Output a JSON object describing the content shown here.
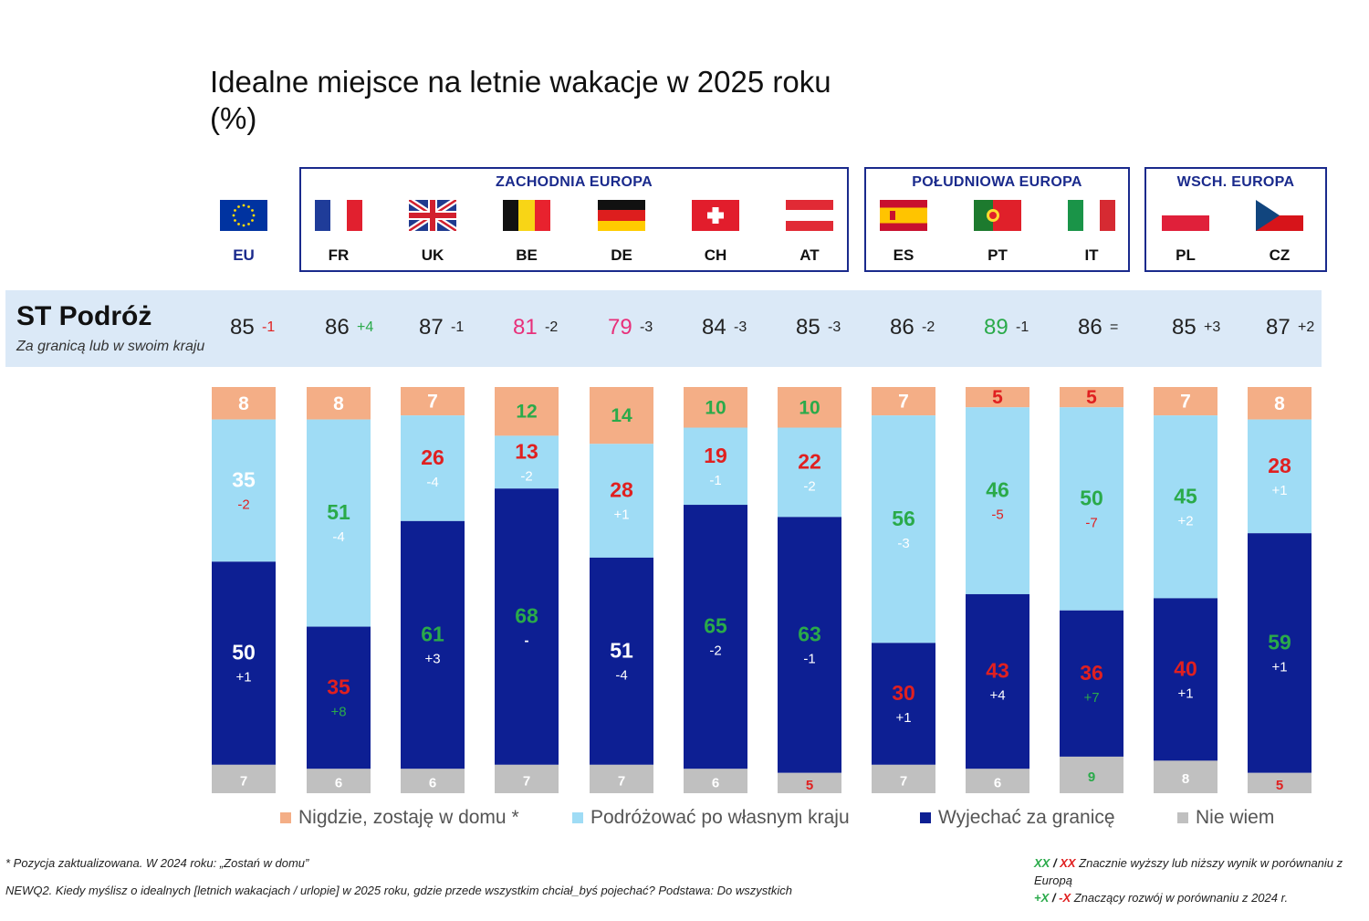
{
  "title_lines": [
    "Idealne miejsce na letnie wakacje w 2025 roku",
    "(%)"
  ],
  "regions": [
    {
      "name": "ZACHODNIA EUROPA"
    },
    {
      "name": "POŁUDNIOWA EUROPA"
    },
    {
      "name": "WSCH. EUROPA"
    }
  ],
  "countries": [
    "EU",
    "FR",
    "UK",
    "BE",
    "DE",
    "CH",
    "AT",
    "ES",
    "PT",
    "IT",
    "PL",
    "CZ"
  ],
  "flag_icons": [
    "eu-flag-icon",
    "france-flag-icon",
    "uk-flag-icon",
    "belgium-flag-icon",
    "germany-flag-icon",
    "switzerland-flag-icon",
    "austria-flag-icon",
    "spain-flag-icon",
    "portugal-flag-icon",
    "italy-flag-icon",
    "poland-flag-icon",
    "czechia-flag-icon"
  ],
  "st_row": {
    "title": "ST Podróż",
    "subtitle": "Za granicą lub w swoim kraju",
    "values": [
      "85",
      "86",
      "87",
      "81",
      "79",
      "84",
      "85",
      "86",
      "89",
      "86",
      "85",
      "87"
    ],
    "value_colors": [
      "#222222",
      "#222222",
      "#222222",
      "#e8307a",
      "#e8307a",
      "#222222",
      "#222222",
      "#222222",
      "#2aaa4a",
      "#222222",
      "#222222",
      "#222222"
    ],
    "deltas": [
      "-1",
      "+4",
      "-1",
      "-2",
      "-3",
      "-3",
      "-3",
      "-2",
      "-1",
      "=",
      "+3",
      "+2"
    ],
    "delta_colors": [
      "#e02020",
      "#2aaa4a",
      "#222222",
      "#222222",
      "#222222",
      "#222222",
      "#222222",
      "#222222",
      "#222222",
      "#222222",
      "#222222",
      "#222222"
    ]
  },
  "colors": {
    "nowhere": "#f4ae86",
    "domestic": "#9fdcf5",
    "abroad": "#0d1f93",
    "dontknow": "#c0c0c0",
    "green": "#2aaa4a",
    "red": "#e02020",
    "band": "#dbe9f7",
    "region_border": "#1a2a8c"
  },
  "chart_data": {
    "type": "bar",
    "stacked": true,
    "normalized": true,
    "categories": [
      "EU",
      "FR",
      "UK",
      "BE",
      "DE",
      "CH",
      "AT",
      "ES",
      "PT",
      "IT",
      "PL",
      "CZ"
    ],
    "series": [
      {
        "name": "Nigdzie, zostaję w domu *",
        "values": [
          8,
          8,
          7,
          12,
          14,
          10,
          10,
          7,
          5,
          5,
          7,
          8
        ],
        "label_colors": [
          "#ffffff",
          "#ffffff",
          "#ffffff",
          "#2aaa4a",
          "#2aaa4a",
          "#2aaa4a",
          "#2aaa4a",
          "#ffffff",
          "#e02020",
          "#e02020",
          "#ffffff",
          "#ffffff"
        ],
        "changes": [
          "",
          "",
          "",
          "",
          "",
          "",
          "",
          "",
          "",
          "",
          "",
          ""
        ],
        "change_colors": [
          "",
          "",
          "",
          "",
          "",
          "",
          "",
          "",
          "",
          "",
          "",
          ""
        ]
      },
      {
        "name": "Podróżować po własnym kraju",
        "values": [
          35,
          51,
          26,
          13,
          28,
          19,
          22,
          56,
          46,
          50,
          45,
          28
        ],
        "label_colors": [
          "#ffffff",
          "#2aaa4a",
          "#e02020",
          "#e02020",
          "#e02020",
          "#e02020",
          "#e02020",
          "#2aaa4a",
          "#2aaa4a",
          "#2aaa4a",
          "#2aaa4a",
          "#e02020"
        ],
        "changes": [
          "-2",
          "-4",
          "-4",
          "-2",
          "+1",
          "-1",
          "-2",
          "-3",
          "-5",
          "-7",
          "+2",
          "+1"
        ],
        "change_colors": [
          "#e02020",
          "#ffffff",
          "#ffffff",
          "#ffffff",
          "#ffffff",
          "#ffffff",
          "#ffffff",
          "#ffffff",
          "#e02020",
          "#e02020",
          "#ffffff",
          "#ffffff"
        ]
      },
      {
        "name": "Wyjechać za granicę",
        "values": [
          50,
          35,
          61,
          68,
          51,
          65,
          63,
          30,
          43,
          36,
          40,
          59
        ],
        "label_colors": [
          "#ffffff",
          "#e02020",
          "#2aaa4a",
          "#2aaa4a",
          "#ffffff",
          "#2aaa4a",
          "#2aaa4a",
          "#e02020",
          "#e02020",
          "#e02020",
          "#e02020",
          "#2aaa4a"
        ],
        "changes": [
          "+1",
          "+8",
          "+3",
          "-",
          "-4",
          "-2",
          "-1",
          "+1",
          "+4",
          "+7",
          "+1",
          "+1"
        ],
        "change_colors": [
          "#ffffff",
          "#2aaa4a",
          "#ffffff",
          "#ffffff",
          "#ffffff",
          "#ffffff",
          "#ffffff",
          "#ffffff",
          "#ffffff",
          "#2aaa4a",
          "#ffffff",
          "#ffffff"
        ]
      },
      {
        "name": "Nie wiem",
        "values": [
          7,
          6,
          6,
          7,
          7,
          6,
          5,
          7,
          6,
          9,
          8,
          5
        ],
        "label_colors": [
          "#ffffff",
          "#ffffff",
          "#ffffff",
          "#ffffff",
          "#ffffff",
          "#ffffff",
          "#e02020",
          "#ffffff",
          "#ffffff",
          "#2aaa4a",
          "#ffffff",
          "#e02020"
        ],
        "changes": [
          "",
          "",
          "",
          "",
          "",
          "",
          "",
          "",
          "",
          "",
          "",
          ""
        ],
        "change_colors": [
          "",
          "",
          "",
          "",
          "",
          "",
          "",
          "",
          "",
          "",
          "",
          ""
        ]
      }
    ],
    "legend_position": "bottom"
  },
  "footnotes": {
    "asterisk": "* Pozycja zaktualizowana. W 2024 roku: „Zostań w domu”",
    "question": "NEWQ2. Kiedy myślisz o idealnych [letnich wakacjach / urlopie] w 2025 roku, gdzie przede wszystkim chciał_byś pojechać? Podstawa: Do wszystkich",
    "key_line1_green": "XX",
    "key_line1_sep": " / ",
    "key_line1_red": "XX",
    "key_line1_text": " Znacznie wyższy lub niższy wynik w porównaniu z Europą",
    "key_line2_green": "+X",
    "key_line2_sep": " / ",
    "key_line2_red": "-X",
    "key_line2_text": " Znaczący rozwój w porównaniu z 2024 r."
  }
}
